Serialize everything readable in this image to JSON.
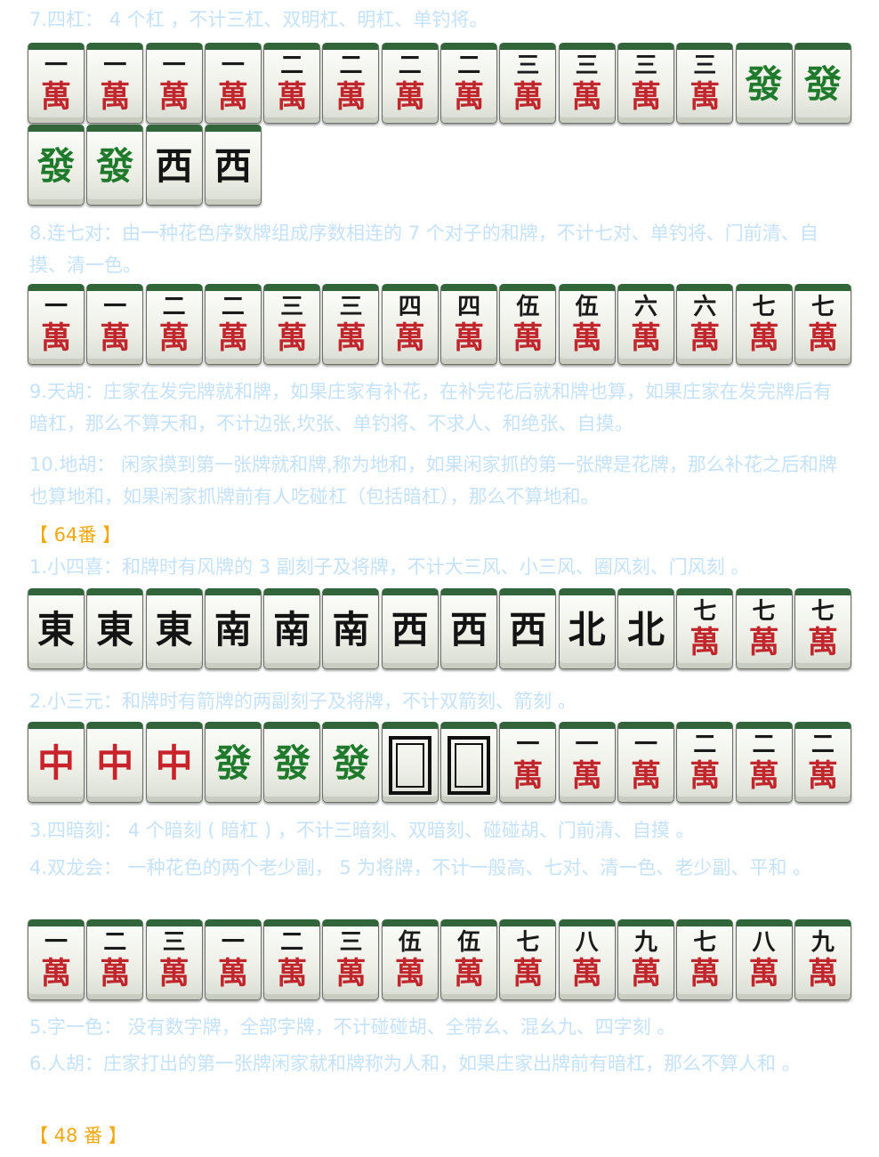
{
  "paragraphs": {
    "p1": "7.四杠： 4 个杠 ，不计三杠、双明杠、明杠、单钓将。",
    "p2": "8.连七对：由一种花色序数牌组成序数相连的 7 个对子的和牌，不计七对、单钓将、门前清、自摸、清一色。",
    "p3": "9.天胡：庄家在发完牌就和牌，如果庄家有补花，在补完花后就和牌也算，如果庄家在发完牌后有暗杠，那么不算天和，不计边张,坎张、单钓将、不求人、和绝张、自摸。",
    "p4": "10.地胡： 闲家摸到第一张牌就和牌,称为地和，如果闲家抓的第一张牌是花牌，那么补花之后和牌也算地和，如果闲家抓牌前有人吃碰杠（包括暗杠），那么不算地和。",
    "p5": "1.小四喜：和牌时有风牌的 3 副刻子及将牌，不计大三风、小三风、圈风刻、门风刻 。",
    "p6": "2.小三元：和牌时有箭牌的两副刻子及将牌，不计双箭刻、箭刻 。",
    "p7": "3.四暗刻： 4 个暗刻 ( 暗杠 ) ，不计三暗刻、双暗刻、碰碰胡、门前清、自摸 。",
    "p8": "4.双龙会： 一种花色的两个老少副， 5 为将牌，不计一般高、七对、清一色、老少副、平和 。",
    "p9": "5.字一色： 没有数字牌，全部字牌，不计碰碰胡、全带幺、混幺九、四字刻 。",
    "p10": "6.人胡：庄家打出的第一张牌闲家就和牌称为人和，如果庄家出牌前有暗杠，那么不算人和 。"
  },
  "headings": {
    "h1": "【 64番 】",
    "h2": "【 48 番 】"
  },
  "tiles": {
    "row1": [
      "一",
      "一",
      "一",
      "一",
      "二",
      "二",
      "二",
      "二",
      "三",
      "三",
      "三",
      "三",
      "發",
      "發"
    ],
    "row2": [
      "發",
      "發",
      "西",
      "西"
    ],
    "row3": [
      "一",
      "一",
      "二",
      "二",
      "三",
      "三",
      "四",
      "四",
      "伍",
      "伍",
      "六",
      "六",
      "七",
      "七"
    ],
    "row4": [
      "東",
      "東",
      "東",
      "南",
      "南",
      "南",
      "西",
      "西",
      "西",
      "北",
      "北",
      "七",
      "七",
      "七"
    ],
    "row5": [
      "中",
      "中",
      "中",
      "發",
      "發",
      "發",
      "白",
      "白",
      "一",
      "一",
      "一",
      "二",
      "二",
      "二"
    ],
    "row6": [
      "一",
      "二",
      "三",
      "一",
      "二",
      "三",
      "伍",
      "伍",
      "七",
      "八",
      "九",
      "七",
      "八",
      "九"
    ],
    "man_char": "萬"
  },
  "colors": {
    "text": "#c5e2fb",
    "heading": "#f4a80e",
    "tile_back": "#32663a",
    "character_red": "#c0262c",
    "dragon_green": "#1f7a2c"
  }
}
